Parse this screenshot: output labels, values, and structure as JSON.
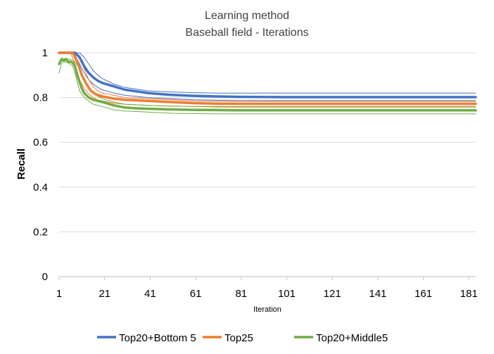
{
  "chart_data": {
    "type": "line",
    "title": "Learning method",
    "subtitle": "Baseball field - Iterations",
    "xlabel": "Iteration",
    "ylabel": "Recall",
    "xlim": [
      1,
      184
    ],
    "ylim": [
      0,
      1
    ],
    "x_ticks": [
      "1",
      "21",
      "41",
      "61",
      "81",
      "101",
      "121",
      "141",
      "161",
      "181"
    ],
    "y_ticks": [
      "0",
      "0.2",
      "0.4",
      "0.6",
      "0.8",
      "1"
    ],
    "grid": "horizontal",
    "legend_position": "bottom",
    "series": [
      {
        "name": "Top20+Bottom 5",
        "color": "#4472C4",
        "mean": {
          "x": [
            1,
            8,
            10,
            12,
            14,
            16,
            18,
            20,
            25,
            30,
            40,
            50,
            60,
            70,
            80,
            100,
            184
          ],
          "y": [
            1.0,
            1.0,
            0.98,
            0.94,
            0.91,
            0.89,
            0.875,
            0.865,
            0.85,
            0.835,
            0.82,
            0.812,
            0.808,
            0.805,
            0.803,
            0.802,
            0.802
          ]
        },
        "upper": {
          "x": [
            1,
            8,
            10,
            12,
            14,
            16,
            18,
            20,
            25,
            30,
            40,
            50,
            60,
            70,
            80,
            100,
            184
          ],
          "y": [
            1.0,
            1.0,
            1.0,
            0.98,
            0.95,
            0.92,
            0.9,
            0.885,
            0.86,
            0.845,
            0.83,
            0.825,
            0.822,
            0.82,
            0.82,
            0.82,
            0.82
          ]
        },
        "lower": {
          "x": [
            1,
            6,
            8,
            10,
            12,
            14,
            16,
            18,
            20,
            25,
            30,
            40,
            50,
            60,
            70,
            80,
            100,
            184
          ],
          "y": [
            1.0,
            1.0,
            0.99,
            0.95,
            0.91,
            0.88,
            0.86,
            0.845,
            0.835,
            0.82,
            0.81,
            0.8,
            0.795,
            0.79,
            0.788,
            0.787,
            0.787,
            0.787
          ]
        }
      },
      {
        "name": "Top25",
        "color": "#ED7D31",
        "mean": {
          "x": [
            1,
            7,
            9,
            11,
            13,
            15,
            17,
            20,
            25,
            30,
            40,
            50,
            60,
            70,
            80,
            100,
            184
          ],
          "y": [
            1.0,
            1.0,
            0.96,
            0.9,
            0.86,
            0.83,
            0.815,
            0.805,
            0.795,
            0.79,
            0.785,
            0.78,
            0.775,
            0.773,
            0.772,
            0.772,
            0.772
          ]
        },
        "upper": {
          "x": [
            1,
            8,
            10,
            12,
            14,
            16,
            18,
            20,
            25,
            30,
            40,
            50,
            60,
            70,
            80,
            100,
            184
          ],
          "y": [
            1.0,
            1.0,
            0.98,
            0.93,
            0.88,
            0.85,
            0.83,
            0.82,
            0.81,
            0.8,
            0.795,
            0.79,
            0.785,
            0.783,
            0.782,
            0.782,
            0.782
          ]
        },
        "lower": {
          "x": [
            1,
            6,
            8,
            10,
            12,
            14,
            16,
            18,
            20,
            25,
            30,
            40,
            50,
            60,
            70,
            80,
            100,
            184
          ],
          "y": [
            1.0,
            1.0,
            0.95,
            0.88,
            0.84,
            0.815,
            0.8,
            0.79,
            0.785,
            0.775,
            0.77,
            0.765,
            0.762,
            0.76,
            0.76,
            0.76,
            0.76,
            0.76
          ]
        }
      },
      {
        "name": "Top20+Middle5",
        "color": "#70AD47",
        "mean": {
          "x": [
            1,
            2,
            3,
            4,
            5,
            6,
            7,
            8,
            9,
            10,
            11,
            12,
            14,
            16,
            18,
            20,
            25,
            30,
            35,
            40,
            50,
            60,
            70,
            80,
            100,
            184
          ],
          "y": [
            0.95,
            0.97,
            0.965,
            0.97,
            0.96,
            0.96,
            0.955,
            0.94,
            0.9,
            0.87,
            0.84,
            0.82,
            0.8,
            0.79,
            0.785,
            0.78,
            0.765,
            0.755,
            0.752,
            0.75,
            0.747,
            0.745,
            0.744,
            0.743,
            0.743,
            0.743
          ]
        },
        "upper": {
          "x": [
            1,
            2,
            4,
            6,
            8,
            10,
            12,
            14,
            16,
            18,
            20,
            25,
            30,
            40,
            50,
            60,
            70,
            80,
            100,
            184
          ],
          "y": [
            0.96,
            0.975,
            0.975,
            0.97,
            0.96,
            0.93,
            0.88,
            0.84,
            0.82,
            0.805,
            0.795,
            0.78,
            0.77,
            0.765,
            0.762,
            0.76,
            0.758,
            0.757,
            0.757,
            0.757
          ]
        },
        "lower": {
          "x": [
            1,
            2,
            3,
            5,
            7,
            8,
            9,
            10,
            12,
            14,
            16,
            18,
            20,
            25,
            30,
            40,
            50,
            60,
            70,
            80,
            100,
            184
          ],
          "y": [
            0.91,
            0.95,
            0.96,
            0.955,
            0.94,
            0.91,
            0.87,
            0.83,
            0.8,
            0.785,
            0.77,
            0.765,
            0.76,
            0.745,
            0.74,
            0.735,
            0.73,
            0.728,
            0.727,
            0.727,
            0.727,
            0.727
          ]
        }
      }
    ]
  }
}
